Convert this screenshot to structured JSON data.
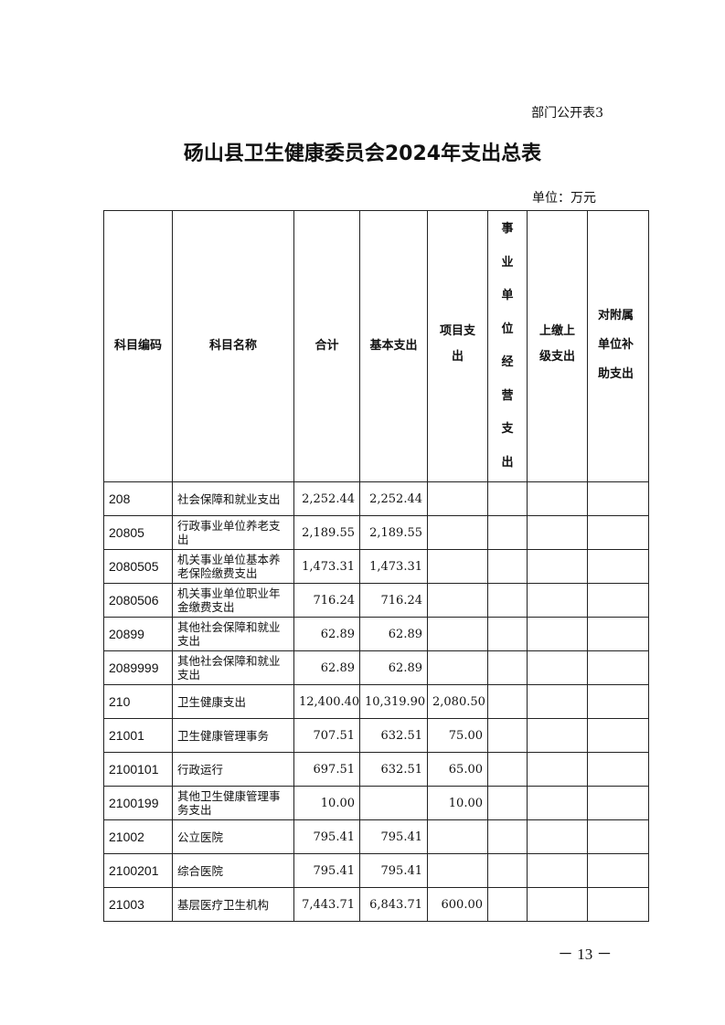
{
  "table_label": "部门公开表3",
  "title": "砀山县卫生健康委员会2024年支出总表",
  "unit": "单位：万元",
  "columns": [
    "科目编码",
    "科目名称",
    "合计",
    "基本支出",
    "项目支出",
    "事业单位经营支出",
    "上缴上级支出",
    "对附属单位补助支出"
  ],
  "rows": [
    {
      "code": "208",
      "name": "社会保障和就业支出",
      "total": "2,252.44",
      "basic": "2,252.44",
      "project": ""
    },
    {
      "code": "20805",
      "name": "行政事业单位养老支出",
      "total": "2,189.55",
      "basic": "2,189.55",
      "project": ""
    },
    {
      "code": "2080505",
      "name": "机关事业单位基本养老保险缴费支出",
      "total": "1,473.31",
      "basic": "1,473.31",
      "project": ""
    },
    {
      "code": "2080506",
      "name": "机关事业单位职业年金缴费支出",
      "total": "716.24",
      "basic": "716.24",
      "project": ""
    },
    {
      "code": "20899",
      "name": "其他社会保障和就业支出",
      "total": "62.89",
      "basic": "62.89",
      "project": ""
    },
    {
      "code": "2089999",
      "name": "其他社会保障和就业支出",
      "total": "62.89",
      "basic": "62.89",
      "project": ""
    },
    {
      "code": "210",
      "name": "卫生健康支出",
      "total": "12,400.40",
      "basic": "10,319.90",
      "project": "2,080.50"
    },
    {
      "code": "21001",
      "name": "卫生健康管理事务",
      "total": "707.51",
      "basic": "632.51",
      "project": "75.00"
    },
    {
      "code": "2100101",
      "name": "行政运行",
      "total": "697.51",
      "basic": "632.51",
      "project": "65.00"
    },
    {
      "code": "2100199",
      "name": "其他卫生健康管理事务支出",
      "total": "10.00",
      "basic": "",
      "project": "10.00"
    },
    {
      "code": "21002",
      "name": "公立医院",
      "total": "795.41",
      "basic": "795.41",
      "project": ""
    },
    {
      "code": "2100201",
      "name": "综合医院",
      "total": "795.41",
      "basic": "795.41",
      "project": ""
    },
    {
      "code": "21003",
      "name": "基层医疗卫生机构",
      "total": "7,443.71",
      "basic": "6,843.71",
      "project": "600.00"
    }
  ],
  "page_number": "－ 13 －"
}
